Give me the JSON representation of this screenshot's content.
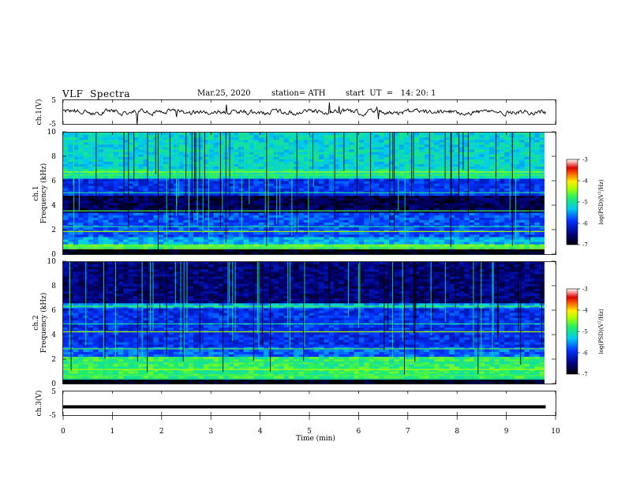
{
  "header": {
    "title": "VLF  Spectra",
    "date": "Mar.25, 2020",
    "station": "station= ATH",
    "start": "start  UT  =   14: 20: 1"
  },
  "chart_data": [
    {
      "type": "line",
      "panel": "ch1-waveform",
      "ylabel": "ch.1(V)",
      "ylim": [
        -5,
        5
      ],
      "yticks": [
        "5",
        "-5"
      ],
      "xlim": [
        0,
        10
      ],
      "series": [
        {
          "values_summary": "noisy waveform centered near 0 V"
        }
      ]
    },
    {
      "type": "heatmap",
      "panel": "ch1-spectrogram",
      "ylabel": "ch.1 Frequency (kHz)",
      "ylim": [
        0,
        10
      ],
      "yticks": [
        "0",
        "2",
        "4",
        "6",
        "8",
        "10"
      ],
      "xlim": [
        0,
        9.8
      ],
      "colorbar": {
        "label": "log(PSD)(V²/Hz)",
        "ticks": [
          "-3",
          "-4",
          "-5",
          "-6",
          "-7"
        ],
        "range": [
          -7,
          -3
        ]
      }
    },
    {
      "type": "heatmap",
      "panel": "ch2-spectrogram",
      "ylabel": "ch.2 Frequency (kHz)",
      "ylim": [
        0,
        10
      ],
      "yticks": [
        "0",
        "2",
        "4",
        "6",
        "8",
        "10"
      ],
      "xlim": [
        0,
        9.8
      ],
      "colorbar": {
        "label": "log(PSD)(V²/Hz)",
        "ticks": [
          "-3",
          "-4",
          "-5",
          "-6",
          "-7"
        ],
        "range": [
          -7,
          -3
        ]
      }
    },
    {
      "type": "line",
      "panel": "ch3-waveform",
      "ylabel": "ch.3(V)",
      "ylim": [
        -5,
        5
      ],
      "yticks": [
        "5",
        "-5"
      ],
      "xlim": [
        0,
        10
      ],
      "series": [
        {
          "values_summary": "flat thick line at about -1.5 V"
        }
      ]
    }
  ],
  "xaxis": {
    "label": "Time  (min)",
    "ticks": [
      "0",
      "1",
      "2",
      "3",
      "4",
      "5",
      "6",
      "7",
      "8",
      "9",
      "10"
    ],
    "range": [
      0,
      10
    ]
  }
}
